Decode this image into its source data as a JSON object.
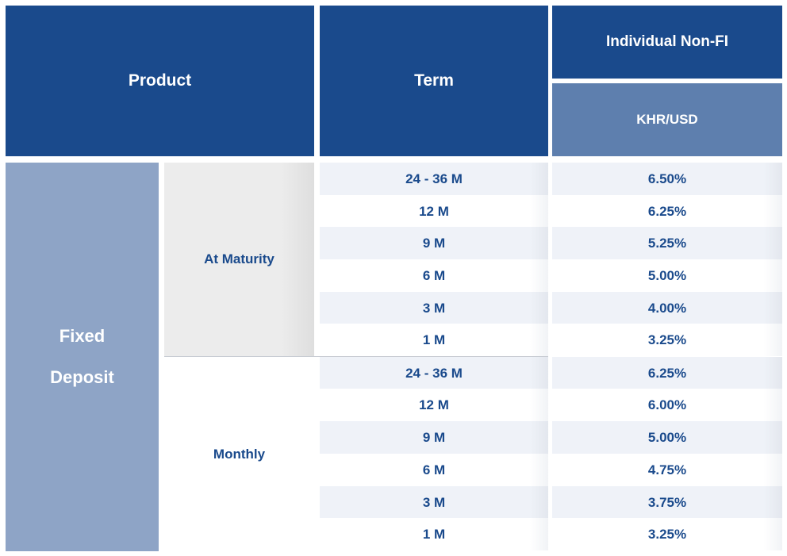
{
  "header": {
    "product": "Product",
    "term": "Term",
    "segment": "Individual Non-FI",
    "currency": "KHR/USD"
  },
  "product": {
    "line1": "Fixed",
    "line2": "Deposit"
  },
  "groups": [
    {
      "label": "At Maturity",
      "rows": [
        {
          "term": "24 - 36 M",
          "rate": "6.50%"
        },
        {
          "term": "12 M",
          "rate": "6.25%"
        },
        {
          "term": "9 M",
          "rate": "5.25%"
        },
        {
          "term": "6 M",
          "rate": "5.00%"
        },
        {
          "term": "3 M",
          "rate": "4.00%"
        },
        {
          "term": "1 M",
          "rate": "3.25%"
        }
      ]
    },
    {
      "label": "Monthly",
      "rows": [
        {
          "term": "24 - 36 M",
          "rate": "6.25%"
        },
        {
          "term": "12 M",
          "rate": "6.00%"
        },
        {
          "term": "9 M",
          "rate": "5.00%"
        },
        {
          "term": "6 M",
          "rate": "4.75%"
        },
        {
          "term": "3 M",
          "rate": "3.75%"
        },
        {
          "term": "1 M",
          "rate": "3.25%"
        }
      ]
    }
  ],
  "colors": {
    "header_dark": "#1a4a8c",
    "header_sub": "#5e7fae",
    "product_col": "#8ea4c6",
    "text_blue": "#1a4a8c"
  }
}
